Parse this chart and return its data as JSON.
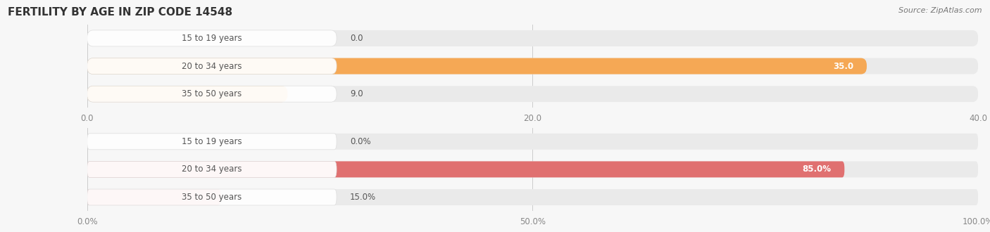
{
  "title": "Female Fertility by Age in Zip Code 14548",
  "title_display": "FERTILITY BY AGE IN ZIP CODE 14548",
  "source": "Source: ZipAtlas.com",
  "top_chart": {
    "categories": [
      "15 to 19 years",
      "20 to 34 years",
      "35 to 50 years"
    ],
    "values": [
      0.0,
      35.0,
      9.0
    ],
    "xlim": [
      0,
      40
    ],
    "xticks": [
      0.0,
      20.0,
      40.0
    ],
    "xtick_labels": [
      "0.0",
      "20.0",
      "40.0"
    ],
    "bar_color": "#F5A855",
    "bar_color_light": "#FAD3A0",
    "bar_bg_color": "#EAEAEA"
  },
  "bottom_chart": {
    "categories": [
      "15 to 19 years",
      "20 to 34 years",
      "35 to 50 years"
    ],
    "values": [
      0.0,
      85.0,
      15.0
    ],
    "xlim": [
      0,
      100
    ],
    "xticks": [
      0.0,
      50.0,
      100.0
    ],
    "xtick_labels": [
      "0.0%",
      "50.0%",
      "100.0%"
    ],
    "bar_color": "#E07070",
    "bar_color_light": "#EFA8A8",
    "bar_bg_color": "#EAEAEA"
  },
  "label_fontsize": 8.5,
  "value_fontsize": 8.5,
  "title_fontsize": 11,
  "source_fontsize": 8,
  "bar_height": 0.58,
  "background_color": "#F7F7F7",
  "label_box_color": "#FFFFFF",
  "label_text_color": "#555555",
  "grid_color": "#CCCCCC",
  "tick_color": "#888888"
}
